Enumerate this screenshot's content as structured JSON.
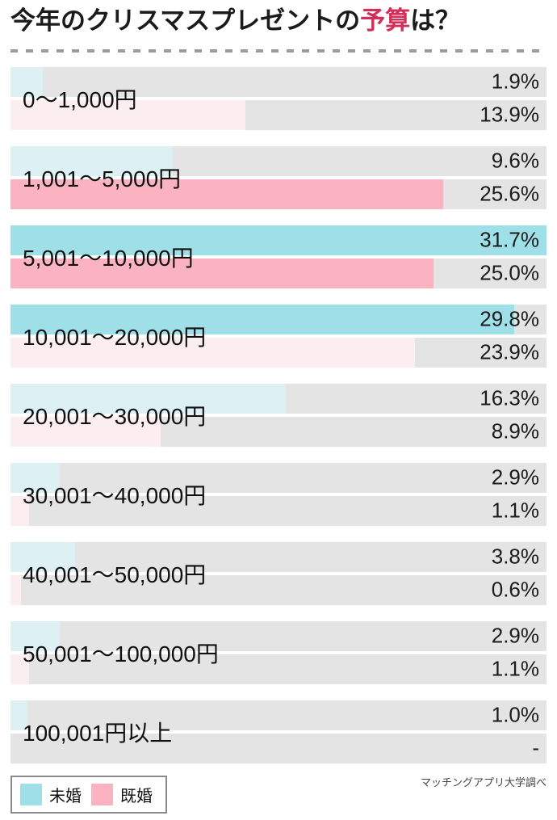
{
  "title": {
    "prefix": "今年のクリスマスプレゼントの",
    "highlight": "予算",
    "suffix": "は？"
  },
  "accent_color": "#d2305a",
  "chart_data": {
    "type": "bar",
    "orientation": "horizontal",
    "title": "今年のクリスマスプレゼントの予算は？",
    "categories": [
      "0〜1,000円",
      "1,001〜5,000円",
      "5,001〜10,000円",
      "10,001〜20,000円",
      "20,001〜30,000円",
      "30,001〜40,000円",
      "40,001〜50,000円",
      "50,001〜100,000円",
      "100,001円以上"
    ],
    "series": [
      {
        "name": "未婚",
        "key": "unmarried",
        "color_strong": "#9fdfe8",
        "color_light": "#ddf1f4",
        "values": [
          1.9,
          9.6,
          31.7,
          29.8,
          16.3,
          2.9,
          3.8,
          2.9,
          1.0
        ],
        "labels": [
          "1.9%",
          "9.6%",
          "31.7%",
          "29.8%",
          "16.3%",
          "2.9%",
          "3.8%",
          "2.9%",
          "1.0%"
        ],
        "emphasis": [
          false,
          false,
          true,
          true,
          false,
          false,
          false,
          false,
          false
        ]
      },
      {
        "name": "既婚",
        "key": "married",
        "color_strong": "#fbb3c1",
        "color_light": "#fcedf0",
        "values": [
          13.9,
          25.6,
          25.0,
          23.9,
          8.9,
          1.1,
          0.6,
          1.1,
          null
        ],
        "labels": [
          "13.9%",
          "25.6%",
          "25.0%",
          "23.9%",
          "8.9%",
          "1.1%",
          "0.6%",
          "1.1%",
          "-"
        ],
        "emphasis": [
          false,
          true,
          true,
          false,
          false,
          false,
          false,
          false,
          false
        ]
      }
    ],
    "xlim": [
      0,
      31.7
    ],
    "track_color": "#e4e4e4",
    "grid": false,
    "legend_position": "bottom-left",
    "value_label_position": "right-aligned"
  },
  "legend": {
    "items": [
      {
        "label": "未婚",
        "key": "unmarried",
        "color": "#9fdfe8"
      },
      {
        "label": "既婚",
        "key": "married",
        "color": "#fbb3c1"
      }
    ]
  },
  "footer": {
    "source": "マッチングアプリ大学調べ"
  }
}
